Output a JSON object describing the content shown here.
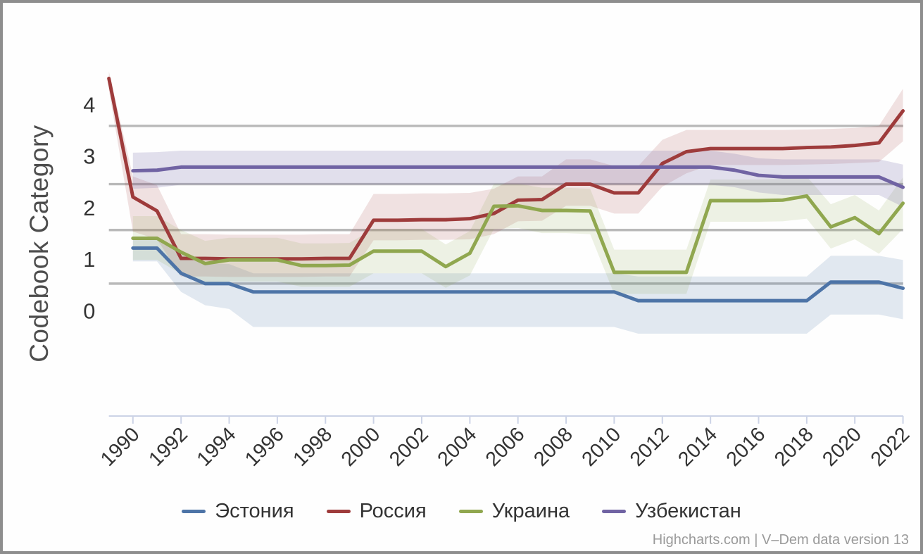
{
  "chart_data": {
    "type": "line",
    "title": "",
    "xlabel": "",
    "ylabel": "Codebook Category",
    "credits": "Highcharts.com | V–Dem data version 13",
    "legend_position": "bottom-center",
    "grid": "threshold-lines-only",
    "x": [
      1989,
      1990,
      1991,
      1992,
      1993,
      1994,
      1995,
      1996,
      1997,
      1998,
      1999,
      2000,
      2001,
      2002,
      2003,
      2004,
      2005,
      2006,
      2007,
      2008,
      2009,
      2010,
      2011,
      2012,
      2013,
      2014,
      2015,
      2016,
      2017,
      2018,
      2019,
      2020,
      2021,
      2022
    ],
    "x_ticks": [
      1990,
      1992,
      1994,
      1996,
      1998,
      2000,
      2002,
      2004,
      2006,
      2008,
      2010,
      2012,
      2014,
      2016,
      2018,
      2020,
      2022
    ],
    "y_ticks": [
      0,
      1,
      2,
      3,
      4
    ],
    "ylim": [
      -2.0,
      5.6
    ],
    "thresholds": [
      0.54,
      1.58,
      2.47,
      3.6
    ],
    "axis_color": "#ccd3e6",
    "threshold_color": "#b9b9b9",
    "series": [
      {
        "id": "estonia",
        "name": "Эстония",
        "color": "#4d74a7",
        "band_opacity": 0.16,
        "values": [
          null,
          1.23,
          1.23,
          0.74,
          0.54,
          0.54,
          0.38,
          0.38,
          0.38,
          0.38,
          0.38,
          0.38,
          0.38,
          0.38,
          0.38,
          0.38,
          0.38,
          0.38,
          0.38,
          0.38,
          0.38,
          0.38,
          0.21,
          0.21,
          0.21,
          0.21,
          0.21,
          0.21,
          0.21,
          0.21,
          0.57,
          0.57,
          0.57,
          0.45
        ],
        "band_lo": [
          null,
          0.97,
          0.97,
          0.38,
          0.12,
          0.05,
          -0.3,
          -0.3,
          -0.3,
          -0.3,
          -0.3,
          -0.3,
          -0.3,
          -0.3,
          -0.3,
          -0.3,
          -0.3,
          -0.3,
          -0.3,
          -0.3,
          -0.3,
          -0.3,
          -0.43,
          -0.43,
          -0.43,
          -0.43,
          -0.43,
          -0.43,
          -0.43,
          -0.43,
          -0.06,
          -0.06,
          -0.06,
          -0.15
        ],
        "band_hi": [
          null,
          1.45,
          1.45,
          1.1,
          0.93,
          0.92,
          0.74,
          0.74,
          0.74,
          0.74,
          0.74,
          0.74,
          0.74,
          0.74,
          0.74,
          0.74,
          0.74,
          0.74,
          0.74,
          0.74,
          0.74,
          0.74,
          0.68,
          0.68,
          0.68,
          0.68,
          0.68,
          0.68,
          0.68,
          0.68,
          1.08,
          1.08,
          1.08,
          1.0
        ]
      },
      {
        "id": "russia",
        "name": "Россия",
        "color": "#9e3b3b",
        "band_opacity": 0.15,
        "values": [
          4.52,
          2.22,
          1.95,
          1.03,
          1.03,
          1.02,
          1.02,
          1.02,
          1.02,
          1.03,
          1.03,
          1.77,
          1.77,
          1.78,
          1.78,
          1.8,
          1.9,
          2.16,
          2.17,
          2.47,
          2.47,
          2.3,
          2.3,
          2.87,
          3.1,
          3.16,
          3.16,
          3.16,
          3.16,
          3.18,
          3.19,
          3.22,
          3.27,
          3.89
        ],
        "band_lo": [
          4.3,
          1.55,
          1.4,
          0.68,
          0.68,
          0.67,
          0.67,
          0.67,
          0.67,
          0.68,
          0.68,
          1.38,
          1.38,
          1.39,
          1.39,
          1.4,
          1.5,
          1.75,
          1.76,
          2.05,
          2.05,
          1.9,
          1.9,
          2.42,
          2.68,
          2.84,
          2.84,
          2.84,
          2.84,
          2.85,
          2.86,
          2.88,
          2.9,
          3.3
        ],
        "band_hi": [
          4.66,
          2.62,
          2.45,
          1.5,
          1.5,
          1.49,
          1.49,
          1.49,
          1.49,
          1.5,
          1.5,
          2.28,
          2.28,
          2.29,
          2.29,
          2.3,
          2.38,
          2.62,
          2.62,
          2.95,
          2.95,
          2.82,
          2.82,
          3.33,
          3.52,
          3.52,
          3.52,
          3.52,
          3.52,
          3.53,
          3.54,
          3.56,
          3.6,
          4.32
        ]
      },
      {
        "id": "ukraine",
        "name": "Украина",
        "color": "#90a74f",
        "band_opacity": 0.15,
        "values": [
          null,
          1.42,
          1.42,
          1.15,
          0.93,
          1.0,
          1.0,
          1.0,
          0.89,
          0.89,
          0.9,
          1.17,
          1.17,
          1.17,
          0.87,
          1.13,
          2.04,
          2.05,
          1.96,
          1.96,
          1.95,
          0.76,
          0.76,
          0.76,
          0.76,
          2.15,
          2.15,
          2.15,
          2.16,
          2.24,
          1.64,
          1.82,
          1.51,
          2.1
        ],
        "band_lo": [
          null,
          1.0,
          1.0,
          0.73,
          0.52,
          0.58,
          0.58,
          0.58,
          0.48,
          0.48,
          0.48,
          0.74,
          0.74,
          0.74,
          0.46,
          0.7,
          1.6,
          1.62,
          1.52,
          1.52,
          1.5,
          0.34,
          0.34,
          0.34,
          0.34,
          1.74,
          1.74,
          1.74,
          1.75,
          1.8,
          1.22,
          1.4,
          1.12,
          1.6
        ],
        "band_hi": [
          null,
          1.85,
          1.85,
          1.58,
          1.37,
          1.43,
          1.43,
          1.43,
          1.32,
          1.32,
          1.33,
          1.6,
          1.6,
          1.6,
          1.3,
          1.56,
          2.48,
          2.48,
          2.4,
          2.4,
          2.38,
          1.2,
          1.2,
          1.2,
          1.2,
          2.56,
          2.56,
          2.56,
          2.57,
          2.62,
          2.08,
          2.26,
          1.96,
          2.6
        ]
      },
      {
        "id": "uzbekistan",
        "name": "Узбекистан",
        "color": "#7063a3",
        "band_opacity": 0.2,
        "values": [
          null,
          2.73,
          2.74,
          2.8,
          2.8,
          2.8,
          2.8,
          2.8,
          2.8,
          2.8,
          2.8,
          2.8,
          2.8,
          2.8,
          2.8,
          2.8,
          2.8,
          2.8,
          2.8,
          2.8,
          2.8,
          2.8,
          2.8,
          2.8,
          2.8,
          2.8,
          2.74,
          2.64,
          2.61,
          2.61,
          2.61,
          2.61,
          2.61,
          2.41
        ],
        "band_lo": [
          null,
          2.38,
          2.4,
          2.46,
          2.46,
          2.46,
          2.46,
          2.46,
          2.46,
          2.46,
          2.46,
          2.46,
          2.46,
          2.46,
          2.46,
          2.46,
          2.46,
          2.46,
          2.46,
          2.46,
          2.46,
          2.46,
          2.46,
          2.46,
          2.46,
          2.46,
          2.41,
          2.31,
          2.26,
          2.26,
          2.26,
          2.26,
          2.26,
          2.03
        ],
        "band_hi": [
          null,
          3.08,
          3.09,
          3.12,
          3.12,
          3.12,
          3.12,
          3.12,
          3.12,
          3.12,
          3.12,
          3.12,
          3.12,
          3.12,
          3.12,
          3.12,
          3.12,
          3.12,
          3.12,
          3.12,
          3.12,
          3.12,
          3.12,
          3.12,
          3.12,
          3.12,
          3.06,
          2.97,
          2.95,
          2.95,
          2.95,
          2.95,
          2.95,
          2.85
        ]
      }
    ]
  }
}
